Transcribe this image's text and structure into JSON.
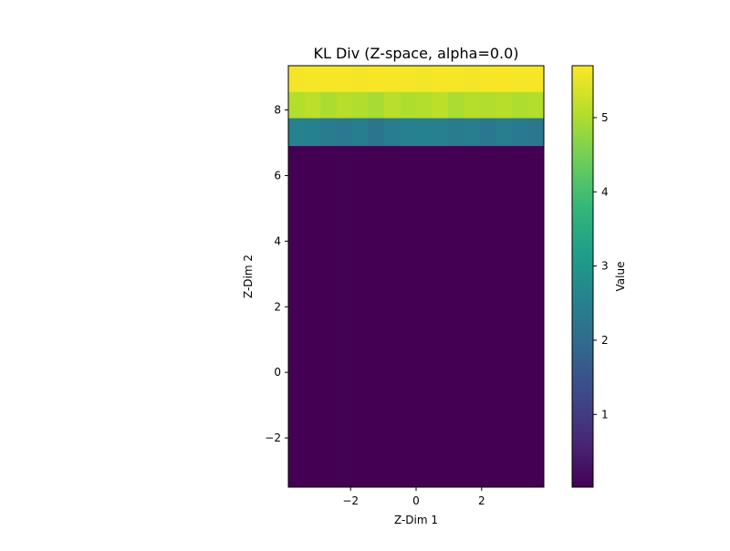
{
  "chart_data": {
    "type": "heatmap",
    "title": "KL Div (Z-space, alpha=0.0)",
    "xlabel": "Z-Dim 1",
    "ylabel": "Z-Dim 2",
    "colorbar_label": "Value",
    "colormap": "viridis",
    "xlim": [
      -3.9,
      3.9
    ],
    "ylim": [
      -3.5,
      9.35
    ],
    "x_ticks": [
      "−2",
      "0",
      "2"
    ],
    "x_tick_values": [
      -2,
      0,
      2
    ],
    "y_ticks": [
      "−2",
      "0",
      "2",
      "4",
      "6",
      "8"
    ],
    "y_tick_values": [
      -2,
      0,
      2,
      4,
      6,
      8
    ],
    "colorbar_range": [
      0.02,
      5.7
    ],
    "colorbar_ticks": [
      "1",
      "2",
      "3",
      "4",
      "5"
    ],
    "colorbar_tick_values": [
      1,
      2,
      3,
      4,
      5
    ],
    "rows": [
      {
        "y_range": [
          8.55,
          9.35
        ],
        "values": [
          5.62,
          5.63,
          5.65,
          5.64,
          5.62,
          5.66,
          5.64,
          5.63,
          5.61,
          5.65,
          5.63,
          5.62,
          5.64,
          5.66,
          5.63,
          5.64
        ]
      },
      {
        "y_range": [
          7.75,
          8.55
        ],
        "values": [
          5.05,
          5.12,
          5.0,
          5.08,
          5.03,
          4.95,
          5.1,
          5.02,
          5.06,
          5.13,
          4.98,
          5.07,
          5.04,
          5.09,
          5.01,
          5.05
        ]
      },
      {
        "y_range": [
          6.9,
          7.75
        ],
        "values": [
          2.55,
          2.52,
          2.4,
          2.33,
          2.48,
          2.22,
          2.45,
          2.5,
          2.53,
          2.49,
          2.38,
          2.44,
          2.31,
          2.42,
          2.36,
          2.27
        ]
      },
      {
        "y_range": [
          -3.5,
          6.9
        ],
        "values": [
          0.02,
          0.02,
          0.02,
          0.03,
          0.02,
          0.02,
          0.02,
          0.02,
          0.02,
          0.02,
          0.02,
          0.02,
          0.02,
          0.02,
          0.02,
          0.02
        ]
      }
    ]
  }
}
